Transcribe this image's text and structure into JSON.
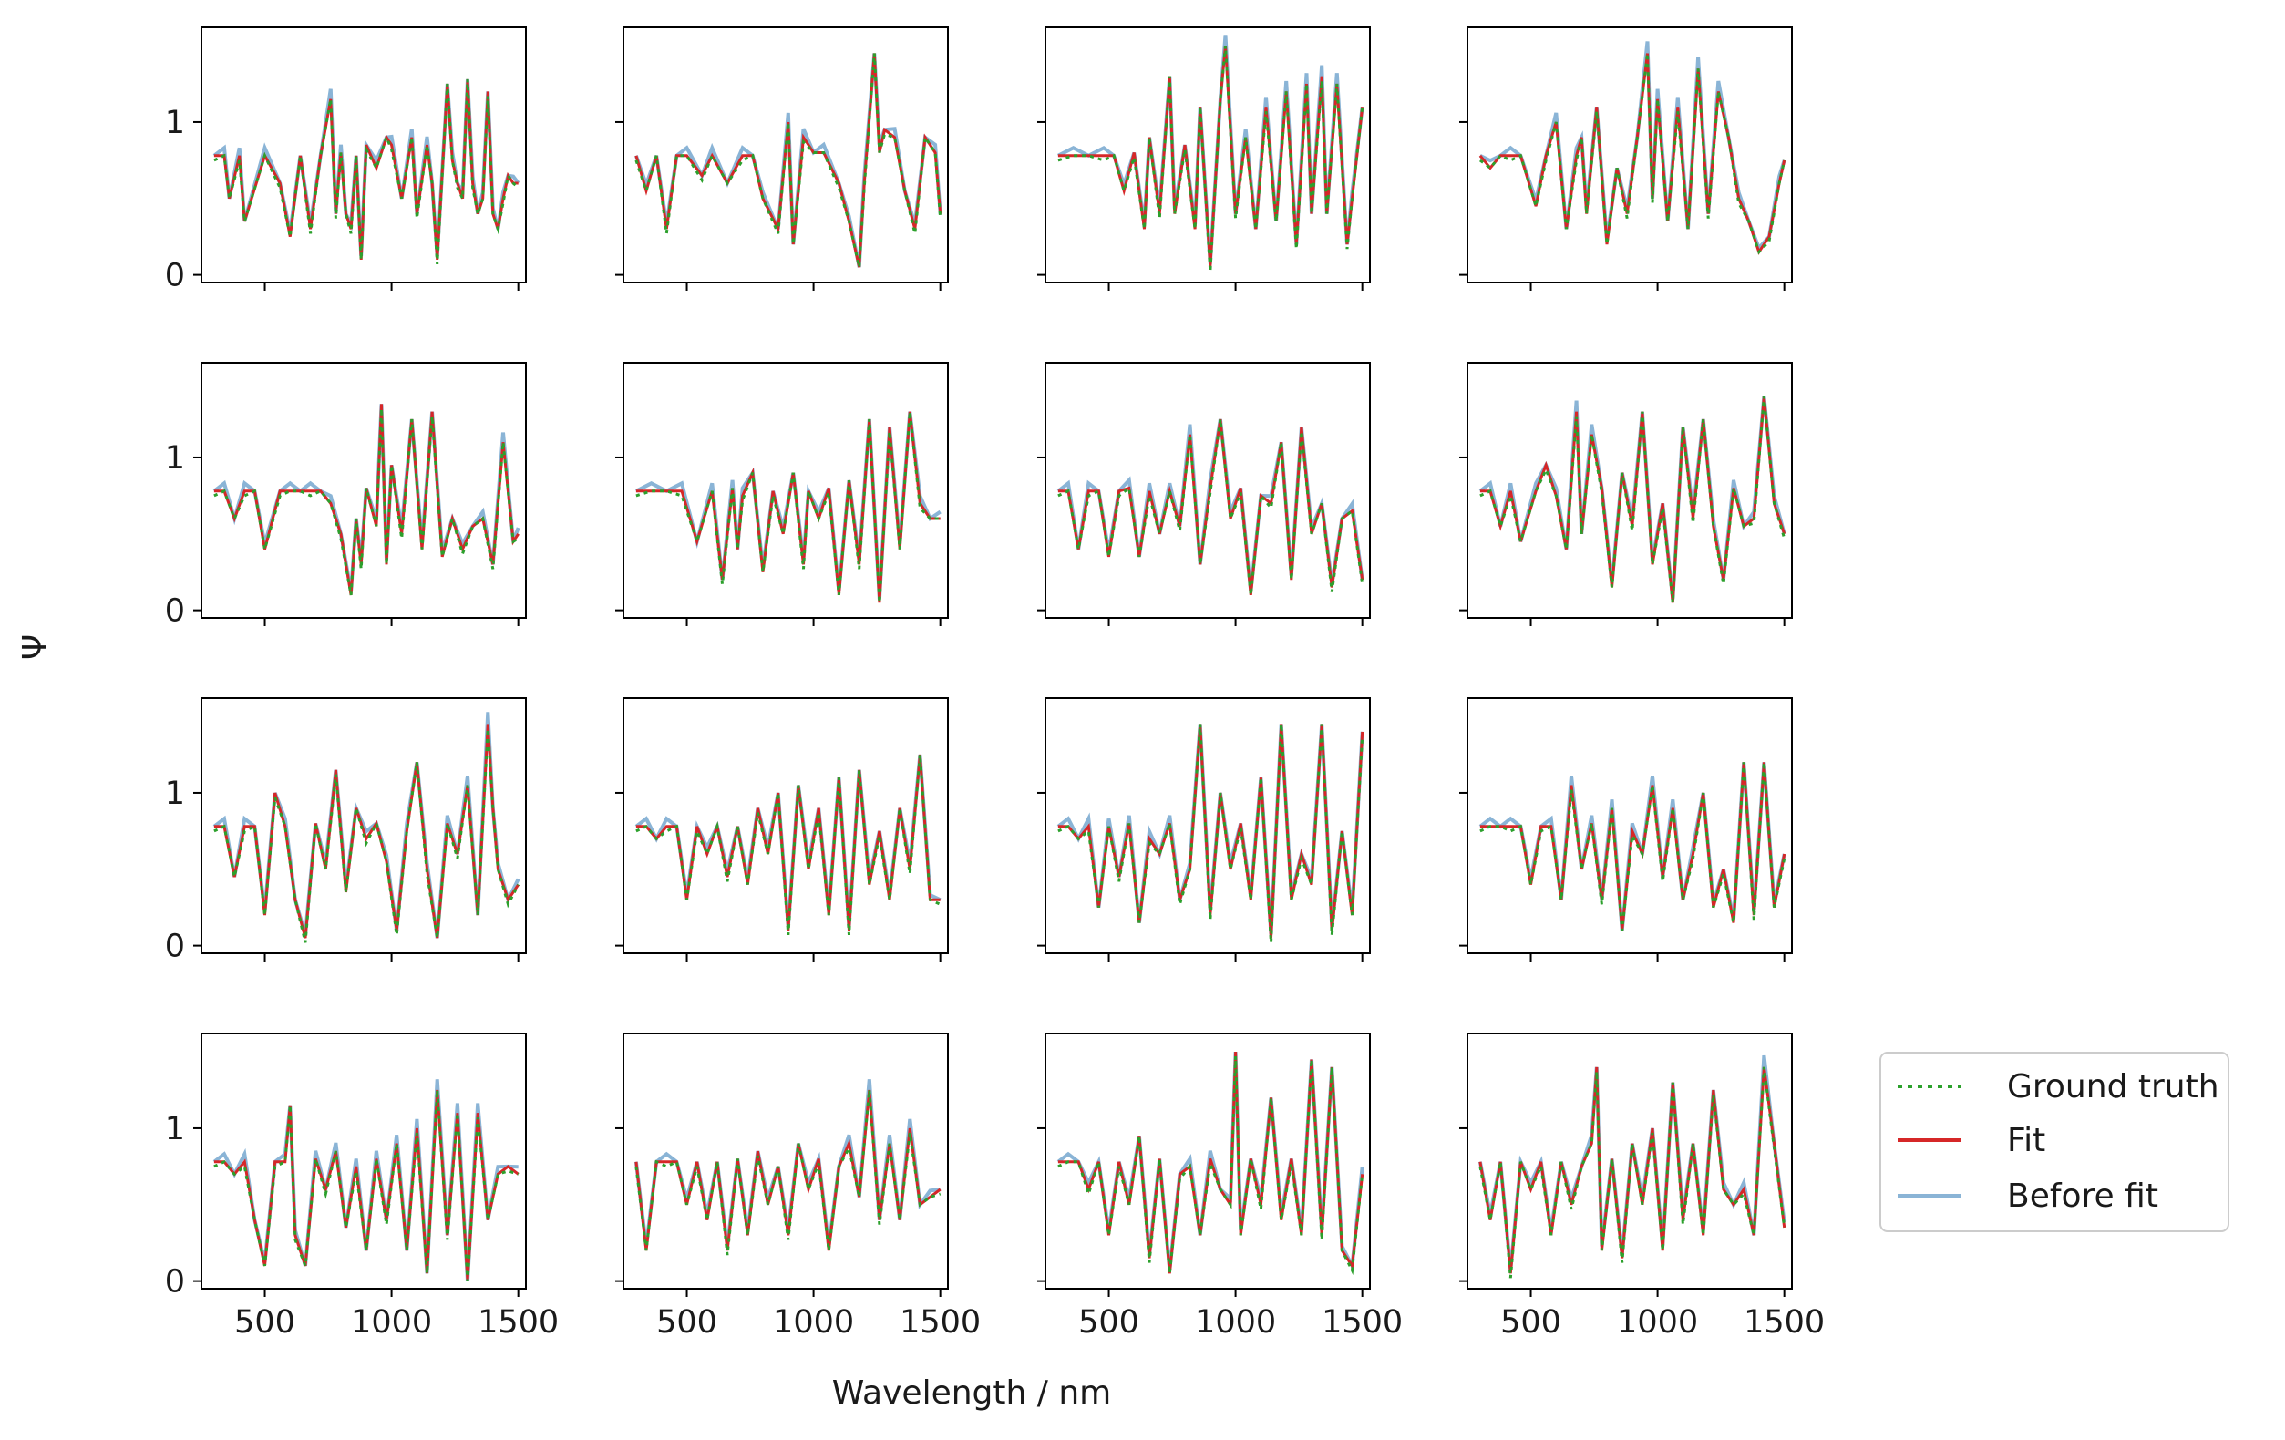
{
  "chart_data": {
    "type": "line",
    "layout": "4x4 grid of subplots, shared x and y axes",
    "xlabel": "Wavelength / nm",
    "ylabel": "Ψ",
    "xlim": [
      250,
      1530
    ],
    "ylim": [
      -0.05,
      1.62
    ],
    "xticks": [
      500,
      1000,
      1500
    ],
    "xtick_labels": [
      "500",
      "1000",
      "1500"
    ],
    "yticks": [
      0,
      1
    ],
    "ytick_labels": [
      "0",
      "1"
    ],
    "legend": {
      "placement": "right of bottom-right subplot",
      "entries": [
        {
          "label": "Ground truth",
          "color": "#2ca02c",
          "style": "dotted"
        },
        {
          "label": "Fit",
          "color": "#d62728",
          "style": "solid"
        },
        {
          "label": "Before fit",
          "color": "#8ab4d6",
          "style": "solid"
        }
      ]
    },
    "series_colors": {
      "ground_truth": "#2ca02c",
      "fit": "#d62728",
      "before_fit": "#8ab4d6"
    },
    "series_note": "Each of the 16 subplots shows three overlapping spectra (Ground truth, Fit, Before fit). Values approximated: baseline ~0.78 below ~700 nm with sharp dips, oscillating peaks up to ~1.5 at longer wavelengths.",
    "subplots": [
      {
        "row": 0,
        "col": 0,
        "x": [
          300,
          340,
          360,
          400,
          420,
          500,
          560,
          600,
          640,
          680,
          720,
          760,
          780,
          800,
          820,
          840,
          860,
          880,
          900,
          940,
          980,
          1000,
          1040,
          1080,
          1100,
          1140,
          1160,
          1180,
          1220,
          1240,
          1260,
          1280,
          1300,
          1320,
          1340,
          1360,
          1380,
          1400,
          1420,
          1440,
          1460,
          1480,
          1500
        ],
        "y": [
          0.78,
          0.78,
          0.5,
          0.78,
          0.35,
          0.78,
          0.6,
          0.25,
          0.78,
          0.3,
          0.78,
          1.15,
          0.4,
          0.8,
          0.4,
          0.3,
          0.78,
          0.1,
          0.85,
          0.7,
          0.9,
          0.85,
          0.5,
          0.9,
          0.4,
          0.85,
          0.6,
          0.1,
          1.25,
          0.75,
          0.6,
          0.5,
          1.28,
          0.6,
          0.4,
          0.5,
          1.2,
          0.4,
          0.3,
          0.5,
          0.65,
          0.6,
          0.6
        ]
      },
      {
        "row": 0,
        "col": 1,
        "x": [
          300,
          340,
          380,
          420,
          460,
          500,
          560,
          600,
          660,
          720,
          760,
          800,
          860,
          900,
          920,
          960,
          1000,
          1040,
          1100,
          1140,
          1180,
          1200,
          1240,
          1260,
          1280,
          1320,
          1360,
          1400,
          1440,
          1480,
          1500
        ],
        "y": [
          0.78,
          0.55,
          0.78,
          0.3,
          0.78,
          0.78,
          0.65,
          0.78,
          0.6,
          0.78,
          0.78,
          0.5,
          0.3,
          1.0,
          0.2,
          0.9,
          0.8,
          0.8,
          0.6,
          0.35,
          0.05,
          0.6,
          1.45,
          0.8,
          0.95,
          0.9,
          0.55,
          0.3,
          0.9,
          0.8,
          0.4
        ]
      },
      {
        "row": 0,
        "col": 2,
        "x": [
          300,
          360,
          420,
          480,
          520,
          560,
          600,
          640,
          660,
          700,
          740,
          760,
          800,
          840,
          860,
          900,
          940,
          960,
          1000,
          1040,
          1080,
          1120,
          1160,
          1200,
          1240,
          1280,
          1300,
          1340,
          1360,
          1400,
          1440,
          1460,
          1500
        ],
        "y": [
          0.78,
          0.78,
          0.78,
          0.78,
          0.78,
          0.55,
          0.8,
          0.3,
          0.9,
          0.4,
          1.3,
          0.4,
          0.85,
          0.3,
          1.1,
          0.05,
          1.15,
          1.5,
          0.4,
          0.9,
          0.3,
          1.1,
          0.35,
          1.2,
          0.2,
          1.25,
          0.4,
          1.3,
          0.4,
          1.25,
          0.2,
          0.5,
          1.1
        ]
      },
      {
        "row": 0,
        "col": 3,
        "x": [
          300,
          340,
          380,
          420,
          460,
          520,
          560,
          600,
          640,
          680,
          700,
          720,
          760,
          800,
          840,
          880,
          920,
          960,
          980,
          1000,
          1040,
          1080,
          1120,
          1160,
          1200,
          1240,
          1280,
          1320,
          1360,
          1400,
          1440,
          1480,
          1500
        ],
        "y": [
          0.78,
          0.7,
          0.78,
          0.78,
          0.78,
          0.45,
          0.78,
          1.0,
          0.3,
          0.78,
          0.9,
          0.4,
          1.1,
          0.2,
          0.7,
          0.4,
          0.9,
          1.45,
          0.5,
          1.15,
          0.35,
          1.1,
          0.3,
          1.35,
          0.4,
          1.2,
          0.9,
          0.5,
          0.35,
          0.15,
          0.25,
          0.6,
          0.75
        ]
      },
      {
        "row": 1,
        "col": 0,
        "x": [
          300,
          340,
          380,
          420,
          460,
          500,
          560,
          600,
          640,
          680,
          720,
          760,
          800,
          840,
          860,
          880,
          900,
          940,
          960,
          980,
          1000,
          1040,
          1080,
          1120,
          1160,
          1200,
          1240,
          1280,
          1320,
          1360,
          1400,
          1440,
          1480,
          1500
        ],
        "y": [
          0.78,
          0.78,
          0.6,
          0.78,
          0.78,
          0.4,
          0.78,
          0.78,
          0.78,
          0.78,
          0.78,
          0.7,
          0.5,
          0.1,
          0.6,
          0.3,
          0.8,
          0.55,
          1.35,
          0.3,
          0.95,
          0.5,
          1.25,
          0.4,
          1.3,
          0.35,
          0.6,
          0.4,
          0.55,
          0.6,
          0.3,
          1.1,
          0.45,
          0.5
        ]
      },
      {
        "row": 1,
        "col": 1,
        "x": [
          300,
          360,
          420,
          480,
          540,
          600,
          640,
          680,
          700,
          720,
          760,
          800,
          840,
          880,
          920,
          960,
          980,
          1020,
          1060,
          1100,
          1140,
          1180,
          1220,
          1260,
          1300,
          1340,
          1380,
          1420,
          1460,
          1500
        ],
        "y": [
          0.78,
          0.78,
          0.78,
          0.78,
          0.45,
          0.78,
          0.2,
          0.8,
          0.4,
          0.75,
          0.9,
          0.25,
          0.78,
          0.5,
          0.9,
          0.3,
          0.78,
          0.6,
          0.8,
          0.1,
          0.85,
          0.3,
          1.25,
          0.05,
          1.2,
          0.4,
          1.3,
          0.7,
          0.6,
          0.6
        ]
      },
      {
        "row": 1,
        "col": 2,
        "x": [
          300,
          340,
          380,
          420,
          460,
          500,
          540,
          580,
          620,
          660,
          700,
          740,
          780,
          820,
          860,
          900,
          940,
          980,
          1020,
          1060,
          1100,
          1140,
          1180,
          1220,
          1260,
          1300,
          1340,
          1380,
          1420,
          1460,
          1500
        ],
        "y": [
          0.78,
          0.78,
          0.4,
          0.78,
          0.78,
          0.35,
          0.78,
          0.8,
          0.35,
          0.78,
          0.5,
          0.78,
          0.55,
          1.15,
          0.3,
          0.8,
          1.25,
          0.6,
          0.8,
          0.1,
          0.75,
          0.7,
          1.1,
          0.2,
          1.2,
          0.5,
          0.7,
          0.15,
          0.6,
          0.65,
          0.2
        ]
      },
      {
        "row": 1,
        "col": 3,
        "x": [
          300,
          340,
          380,
          420,
          460,
          520,
          560,
          600,
          640,
          680,
          700,
          740,
          780,
          820,
          860,
          900,
          940,
          980,
          1020,
          1060,
          1100,
          1140,
          1180,
          1220,
          1260,
          1300,
          1340,
          1380,
          1420,
          1460,
          1500
        ],
        "y": [
          0.78,
          0.78,
          0.55,
          0.78,
          0.45,
          0.78,
          0.95,
          0.75,
          0.4,
          1.3,
          0.5,
          1.15,
          0.8,
          0.15,
          0.9,
          0.55,
          1.3,
          0.3,
          0.7,
          0.05,
          1.2,
          0.6,
          1.25,
          0.55,
          0.2,
          0.8,
          0.55,
          0.6,
          1.4,
          0.7,
          0.5
        ]
      },
      {
        "row": 2,
        "col": 0,
        "x": [
          300,
          340,
          380,
          420,
          460,
          500,
          540,
          580,
          620,
          660,
          700,
          740,
          780,
          820,
          860,
          900,
          940,
          980,
          1020,
          1060,
          1100,
          1140,
          1180,
          1220,
          1260,
          1300,
          1340,
          1380,
          1400,
          1420,
          1460,
          1500
        ],
        "y": [
          0.78,
          0.78,
          0.45,
          0.78,
          0.78,
          0.2,
          1.0,
          0.78,
          0.3,
          0.05,
          0.8,
          0.5,
          1.15,
          0.35,
          0.9,
          0.7,
          0.8,
          0.55,
          0.1,
          0.75,
          1.2,
          0.5,
          0.05,
          0.8,
          0.6,
          1.05,
          0.2,
          1.45,
          0.9,
          0.5,
          0.3,
          0.4
        ]
      },
      {
        "row": 2,
        "col": 1,
        "x": [
          300,
          340,
          380,
          420,
          460,
          500,
          540,
          580,
          620,
          660,
          700,
          740,
          780,
          820,
          860,
          900,
          940,
          980,
          1020,
          1060,
          1100,
          1140,
          1180,
          1220,
          1260,
          1300,
          1340,
          1380,
          1420,
          1460,
          1500
        ],
        "y": [
          0.78,
          0.78,
          0.7,
          0.78,
          0.78,
          0.3,
          0.78,
          0.6,
          0.78,
          0.45,
          0.78,
          0.4,
          0.9,
          0.6,
          1.0,
          0.1,
          1.05,
          0.5,
          0.9,
          0.2,
          1.1,
          0.1,
          1.15,
          0.4,
          0.75,
          0.3,
          0.9,
          0.5,
          1.25,
          0.3,
          0.3
        ]
      },
      {
        "row": 2,
        "col": 2,
        "x": [
          300,
          340,
          380,
          420,
          460,
          500,
          540,
          580,
          620,
          660,
          700,
          740,
          780,
          820,
          860,
          900,
          940,
          980,
          1020,
          1060,
          1100,
          1140,
          1180,
          1220,
          1260,
          1300,
          1340,
          1380,
          1420,
          1460,
          1500
        ],
        "y": [
          0.78,
          0.78,
          0.7,
          0.78,
          0.25,
          0.78,
          0.45,
          0.8,
          0.15,
          0.7,
          0.6,
          0.8,
          0.3,
          0.5,
          1.45,
          0.2,
          1.0,
          0.5,
          0.8,
          0.3,
          1.1,
          0.05,
          1.45,
          0.3,
          0.6,
          0.4,
          1.45,
          0.1,
          0.75,
          0.2,
          1.4
        ]
      },
      {
        "row": 2,
        "col": 3,
        "x": [
          300,
          340,
          380,
          420,
          460,
          500,
          540,
          580,
          620,
          660,
          700,
          740,
          780,
          820,
          860,
          900,
          940,
          980,
          1020,
          1060,
          1100,
          1140,
          1180,
          1220,
          1260,
          1300,
          1340,
          1380,
          1420,
          1460,
          1500
        ],
        "y": [
          0.78,
          0.78,
          0.78,
          0.78,
          0.78,
          0.4,
          0.78,
          0.78,
          0.3,
          1.05,
          0.5,
          0.8,
          0.3,
          0.9,
          0.1,
          0.75,
          0.6,
          1.05,
          0.45,
          0.9,
          0.3,
          0.6,
          1.0,
          0.25,
          0.5,
          0.15,
          1.2,
          0.2,
          1.2,
          0.25,
          0.6
        ]
      },
      {
        "row": 3,
        "col": 0,
        "x": [
          300,
          340,
          380,
          420,
          460,
          500,
          540,
          580,
          600,
          620,
          660,
          700,
          740,
          780,
          820,
          860,
          900,
          940,
          980,
          1020,
          1060,
          1100,
          1140,
          1180,
          1220,
          1260,
          1300,
          1340,
          1380,
          1420,
          1460,
          1500
        ],
        "y": [
          0.78,
          0.78,
          0.7,
          0.78,
          0.4,
          0.1,
          0.78,
          0.78,
          1.15,
          0.3,
          0.1,
          0.8,
          0.6,
          0.85,
          0.35,
          0.75,
          0.2,
          0.8,
          0.4,
          0.9,
          0.2,
          1.0,
          0.05,
          1.25,
          0.3,
          1.1,
          0.0,
          1.1,
          0.4,
          0.7,
          0.75,
          0.7
        ]
      },
      {
        "row": 3,
        "col": 1,
        "x": [
          300,
          340,
          380,
          420,
          460,
          500,
          540,
          580,
          620,
          660,
          700,
          740,
          780,
          820,
          860,
          900,
          940,
          980,
          1020,
          1060,
          1100,
          1140,
          1180,
          1220,
          1260,
          1300,
          1340,
          1380,
          1420,
          1460,
          1500
        ],
        "y": [
          0.78,
          0.2,
          0.78,
          0.78,
          0.78,
          0.5,
          0.78,
          0.4,
          0.78,
          0.2,
          0.8,
          0.3,
          0.85,
          0.5,
          0.75,
          0.3,
          0.9,
          0.6,
          0.8,
          0.2,
          0.75,
          0.9,
          0.55,
          1.25,
          0.4,
          0.9,
          0.4,
          1.0,
          0.5,
          0.55,
          0.6
        ]
      },
      {
        "row": 3,
        "col": 2,
        "x": [
          300,
          340,
          380,
          420,
          460,
          500,
          540,
          580,
          620,
          660,
          700,
          740,
          780,
          820,
          860,
          900,
          940,
          980,
          1000,
          1020,
          1060,
          1100,
          1140,
          1180,
          1220,
          1260,
          1300,
          1340,
          1380,
          1420,
          1460,
          1500
        ],
        "y": [
          0.78,
          0.78,
          0.78,
          0.6,
          0.78,
          0.3,
          0.78,
          0.5,
          0.95,
          0.15,
          0.8,
          0.05,
          0.7,
          0.75,
          0.3,
          0.8,
          0.6,
          0.5,
          1.5,
          0.3,
          0.8,
          0.5,
          1.2,
          0.4,
          0.8,
          0.3,
          1.45,
          0.3,
          1.4,
          0.2,
          0.1,
          0.7
        ]
      },
      {
        "row": 3,
        "col": 3,
        "x": [
          300,
          340,
          380,
          420,
          460,
          500,
          540,
          580,
          620,
          660,
          700,
          740,
          760,
          780,
          820,
          860,
          900,
          940,
          980,
          1020,
          1060,
          1100,
          1140,
          1180,
          1220,
          1260,
          1300,
          1340,
          1380,
          1420,
          1460,
          1500
        ],
        "y": [
          0.78,
          0.4,
          0.78,
          0.05,
          0.78,
          0.6,
          0.78,
          0.3,
          0.78,
          0.5,
          0.75,
          0.9,
          1.4,
          0.2,
          0.8,
          0.15,
          0.9,
          0.5,
          1.0,
          0.2,
          1.3,
          0.4,
          0.9,
          0.3,
          1.25,
          0.6,
          0.5,
          0.6,
          0.3,
          1.4,
          0.9,
          0.35
        ]
      }
    ]
  }
}
